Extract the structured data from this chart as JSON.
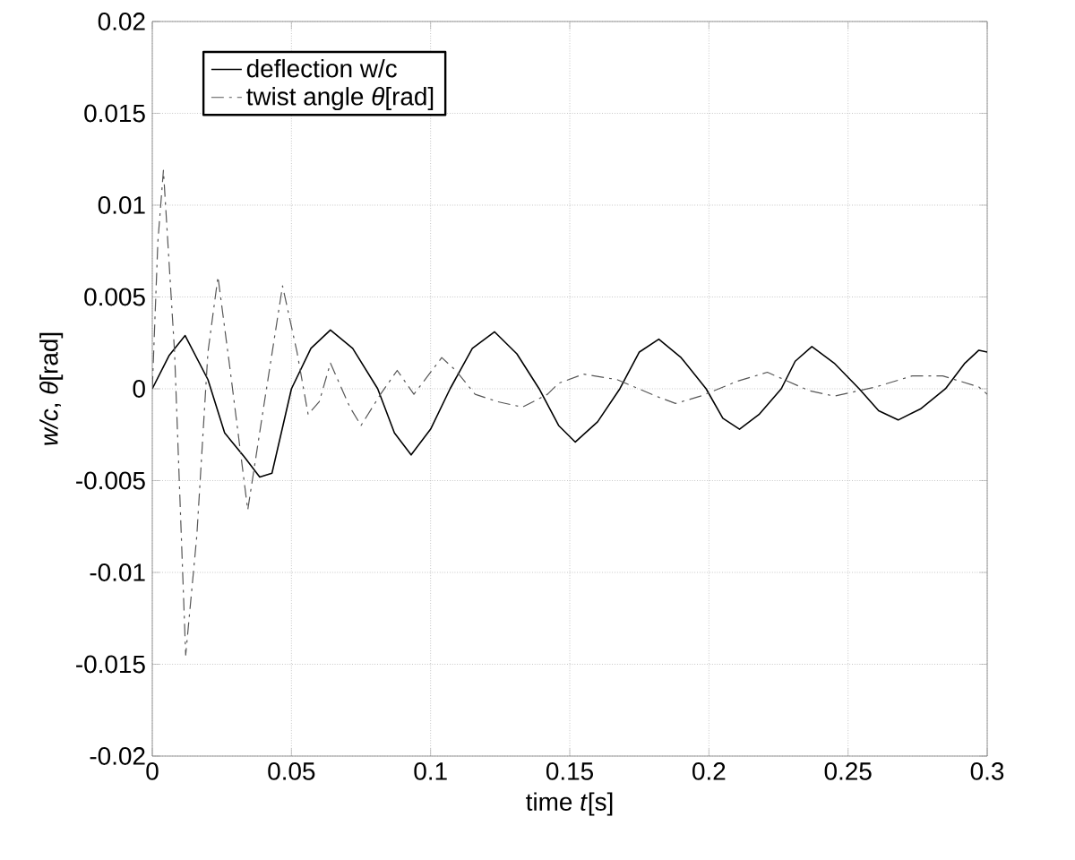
{
  "chart_data": {
    "type": "line",
    "xlabel": "time *t*[s]",
    "ylabel": "*w/c*,  *θ*[rad]",
    "xlim": [
      0,
      0.3
    ],
    "ylim": [
      -0.02,
      0.02
    ],
    "xticks": [
      0,
      0.05,
      0.1,
      0.15,
      0.2,
      0.25,
      0.3
    ],
    "yticks": [
      -0.02,
      -0.015,
      -0.01,
      -0.005,
      0,
      0.005,
      0.01,
      0.015,
      0.02
    ],
    "grid": true,
    "legend": "top left",
    "series": [
      {
        "name": "deflection w/c",
        "color": "#000000",
        "line_style": "solid",
        "x": [
          0,
          0.006,
          0.0118,
          0.02,
          0.026,
          0.033,
          0.0386,
          0.043,
          0.05,
          0.057,
          0.064,
          0.072,
          0.081,
          0.087,
          0.093,
          0.1,
          0.107,
          0.115,
          0.123,
          0.131,
          0.139,
          0.146,
          0.152,
          0.16,
          0.168,
          0.175,
          0.182,
          0.19,
          0.199,
          0.205,
          0.211,
          0.218,
          0.226,
          0.231,
          0.237,
          0.245,
          0.254,
          0.261,
          0.268,
          0.276,
          0.285,
          0.292,
          0.297,
          0.3
        ],
        "values": [
          0,
          0.0018,
          0.0029,
          0.0005,
          -0.0024,
          -0.0037,
          -0.0048,
          -0.0046,
          0,
          0.0022,
          0.0032,
          0.0022,
          0,
          -0.0024,
          -0.0036,
          -0.0022,
          0,
          0.0022,
          0.0031,
          0.0019,
          0,
          -0.002,
          -0.0029,
          -0.0018,
          0,
          0.002,
          0.0027,
          0.0017,
          0,
          -0.0016,
          -0.0022,
          -0.0014,
          0,
          0.0015,
          0.0023,
          0.0014,
          0,
          -0.0012,
          -0.0017,
          -0.0011,
          0,
          0.0014,
          0.0021,
          0.002
        ]
      },
      {
        "name": "twist angle *θ*[rad]",
        "color": "#555555",
        "line_style": "dashed",
        "x": [
          0,
          0.002,
          0.004,
          0.008,
          0.012,
          0.016,
          0.02,
          0.0236,
          0.028,
          0.0343,
          0.04,
          0.0468,
          0.052,
          0.056,
          0.06,
          0.064,
          0.071,
          0.075,
          0.082,
          0.088,
          0.094,
          0.099,
          0.104,
          0.109,
          0.116,
          0.124,
          0.133,
          0.142,
          0.146,
          0.155,
          0.167,
          0.181,
          0.188,
          0.197,
          0.21,
          0.221,
          0.236,
          0.245,
          0.26,
          0.273,
          0.284,
          0.297,
          0.3
        ],
        "values": [
          0,
          0.008,
          0.0119,
          0.002,
          -0.0145,
          -0.008,
          0.002,
          0.0061,
          0.001,
          -0.0066,
          -0.001,
          0.0056,
          0.002,
          -0.0014,
          -0.0007,
          0.0014,
          -0.001,
          -0.002,
          -0.0003,
          0.001,
          -0.0003,
          0.0007,
          0.0017,
          0.001,
          -0.0003,
          -0.0007,
          -0.001,
          -0.0003,
          0.0003,
          0.0008,
          0.0005,
          -0.0004,
          -0.0008,
          -0.0004,
          0.0004,
          0.0009,
          -0.0001,
          -0.0004,
          0.0001,
          0.0007,
          0.0007,
          0.0001,
          -0.0003
        ]
      }
    ]
  }
}
